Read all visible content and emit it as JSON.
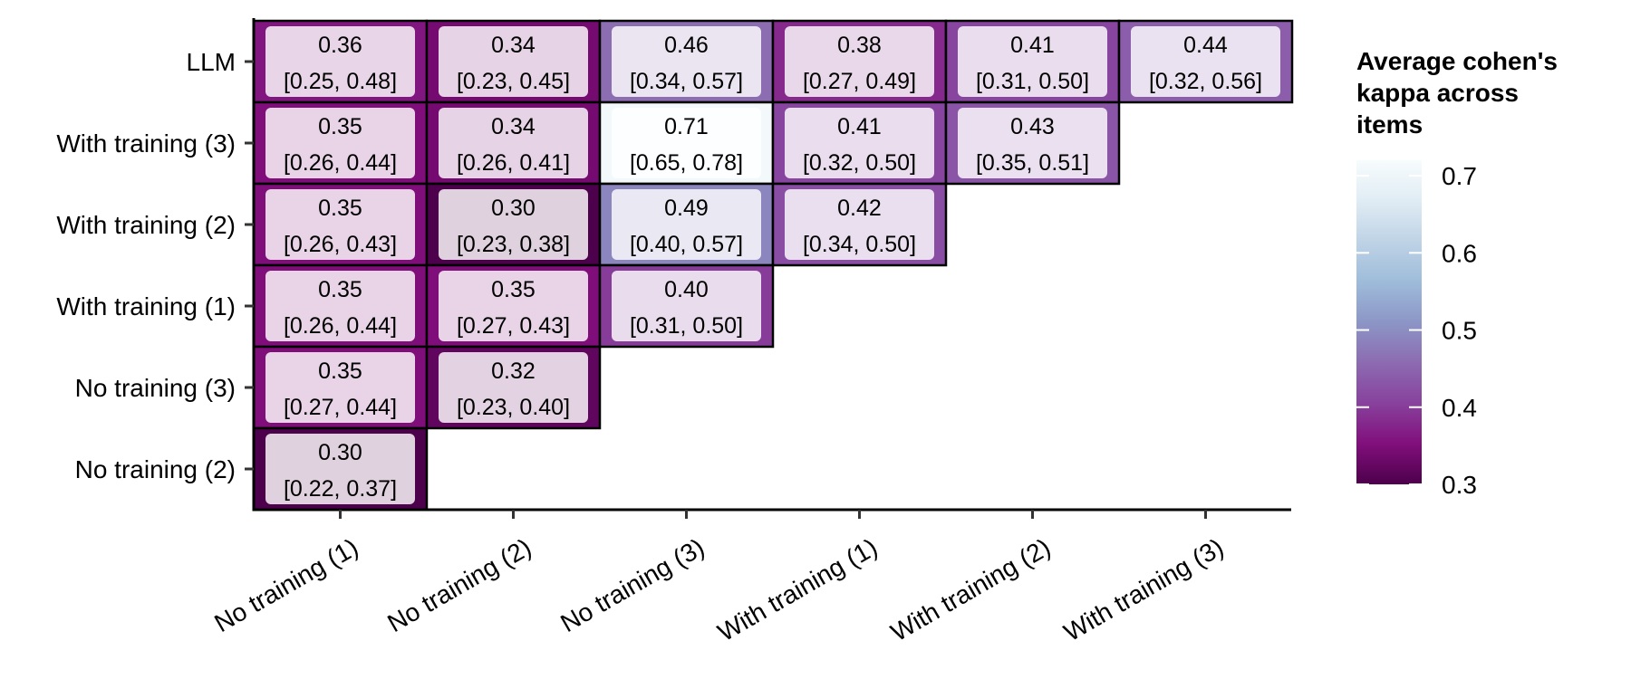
{
  "chart_data": {
    "type": "heatmap",
    "title": "",
    "xlabel": "",
    "ylabel": "",
    "x_categories": [
      "No training (1)",
      "No training (2)",
      "No training (3)",
      "With training (1)",
      "With training (2)",
      "With training (3)"
    ],
    "y_categories": [
      "LLM",
      "With training (3)",
      "With training (2)",
      "With training (1)",
      "No training (3)",
      "No training (2)"
    ],
    "cells": [
      {
        "x": "No training (1)",
        "y": "LLM",
        "value": 0.36,
        "label": "0.36",
        "ci": "[0.25, 0.48]"
      },
      {
        "x": "No training (2)",
        "y": "LLM",
        "value": 0.34,
        "label": "0.34",
        "ci": "[0.23, 0.45]"
      },
      {
        "x": "No training (3)",
        "y": "LLM",
        "value": 0.46,
        "label": "0.46",
        "ci": "[0.34, 0.57]"
      },
      {
        "x": "With training (1)",
        "y": "LLM",
        "value": 0.38,
        "label": "0.38",
        "ci": "[0.27, 0.49]"
      },
      {
        "x": "With training (2)",
        "y": "LLM",
        "value": 0.41,
        "label": "0.41",
        "ci": "[0.31, 0.50]"
      },
      {
        "x": "With training (3)",
        "y": "LLM",
        "value": 0.44,
        "label": "0.44",
        "ci": "[0.32, 0.56]"
      },
      {
        "x": "No training (1)",
        "y": "With training (3)",
        "value": 0.35,
        "label": "0.35",
        "ci": "[0.26, 0.44]"
      },
      {
        "x": "No training (2)",
        "y": "With training (3)",
        "value": 0.34,
        "label": "0.34",
        "ci": "[0.26, 0.41]"
      },
      {
        "x": "No training (3)",
        "y": "With training (3)",
        "value": 0.71,
        "label": "0.71",
        "ci": "[0.65, 0.78]"
      },
      {
        "x": "With training (1)",
        "y": "With training (3)",
        "value": 0.41,
        "label": "0.41",
        "ci": "[0.32, 0.50]"
      },
      {
        "x": "With training (2)",
        "y": "With training (3)",
        "value": 0.43,
        "label": "0.43",
        "ci": "[0.35, 0.51]"
      },
      {
        "x": "No training (1)",
        "y": "With training (2)",
        "value": 0.35,
        "label": "0.35",
        "ci": "[0.26, 0.43]"
      },
      {
        "x": "No training (2)",
        "y": "With training (2)",
        "value": 0.3,
        "label": "0.30",
        "ci": "[0.23, 0.38]"
      },
      {
        "x": "No training (3)",
        "y": "With training (2)",
        "value": 0.49,
        "label": "0.49",
        "ci": "[0.40, 0.57]"
      },
      {
        "x": "With training (1)",
        "y": "With training (2)",
        "value": 0.42,
        "label": "0.42",
        "ci": "[0.34, 0.50]"
      },
      {
        "x": "No training (1)",
        "y": "With training (1)",
        "value": 0.35,
        "label": "0.35",
        "ci": "[0.26, 0.44]"
      },
      {
        "x": "No training (2)",
        "y": "With training (1)",
        "value": 0.35,
        "label": "0.35",
        "ci": "[0.27, 0.43]"
      },
      {
        "x": "No training (3)",
        "y": "With training (1)",
        "value": 0.4,
        "label": "0.40",
        "ci": "[0.31, 0.50]"
      },
      {
        "x": "No training (1)",
        "y": "No training (3)",
        "value": 0.35,
        "label": "0.35",
        "ci": "[0.27, 0.44]"
      },
      {
        "x": "No training (2)",
        "y": "No training (3)",
        "value": 0.32,
        "label": "0.32",
        "ci": "[0.23, 0.40]"
      },
      {
        "x": "No training (1)",
        "y": "No training (2)",
        "value": 0.3,
        "label": "0.30",
        "ci": "[0.22, 0.37]"
      }
    ],
    "legend": {
      "title": [
        "Average cohen's",
        "kappa across",
        "items"
      ],
      "placement": "right",
      "ticks": [
        "0.3",
        "0.4",
        "0.5",
        "0.6",
        "0.7"
      ],
      "range": [
        0.3,
        0.72
      ],
      "colors": [
        "#4d004b",
        "#810f7c",
        "#88419d",
        "#8c6bb1",
        "#8c96c6",
        "#9ebcda",
        "#bfd3e6",
        "#e0ecf4",
        "#f7fcfd"
      ]
    },
    "grid": false
  }
}
